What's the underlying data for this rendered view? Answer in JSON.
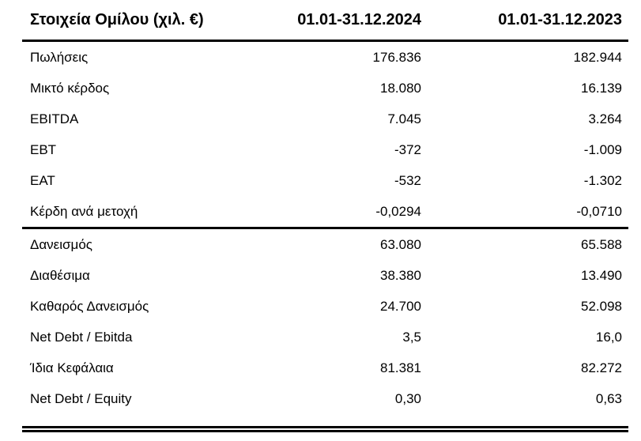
{
  "colors": {
    "background": "#ffffff",
    "text": "#000000",
    "rule": "#000000"
  },
  "table": {
    "header": {
      "title": "Στοιχεία Ομίλου (χιλ. €)",
      "period_2024": "01.01-31.12.2024",
      "period_2023": "01.01-31.12.2023"
    },
    "sections": [
      {
        "rows": [
          {
            "label": "Πωλήσεις",
            "v2024": "176.836",
            "v2023": "182.944"
          },
          {
            "label": "Μικτό κέρδος",
            "v2024": "18.080",
            "v2023": "16.139"
          },
          {
            "label": "EBITDA",
            "v2024": "7.045",
            "v2023": "3.264"
          },
          {
            "label": "EBT",
            "v2024": "-372",
            "v2023": "-1.009"
          },
          {
            "label": "EAT",
            "v2024": "-532",
            "v2023": "-1.302"
          },
          {
            "label": "Κέρδη ανά μετοχή",
            "v2024": "-0,0294",
            "v2023": "-0,0710"
          }
        ]
      },
      {
        "rows": [
          {
            "label": "Δανεισμός",
            "v2024": "63.080",
            "v2023": "65.588"
          },
          {
            "label": "Διαθέσιμα",
            "v2024": "38.380",
            "v2023": "13.490"
          },
          {
            "label": "Καθαρός Δανεισμός",
            "v2024": "24.700",
            "v2023": "52.098"
          },
          {
            "label": "Net Debt / Ebitda",
            "v2024": "3,5",
            "v2023": "16,0"
          },
          {
            "label": "Ίδια Κεφάλαια",
            "v2024": "81.381",
            "v2023": "82.272"
          },
          {
            "label": "Net Debt / Equity",
            "v2024": "0,30",
            "v2023": "0,63"
          }
        ]
      }
    ]
  },
  "chart_data": {
    "type": "table",
    "title": "Στοιχεία Ομίλου (χιλ. €)",
    "columns": [
      "Στοιχεία Ομίλου (χιλ. €)",
      "01.01-31.12.2024",
      "01.01-31.12.2023"
    ],
    "rows": [
      [
        "Πωλήσεις",
        "176.836",
        "182.944"
      ],
      [
        "Μικτό κέρδος",
        "18.080",
        "16.139"
      ],
      [
        "EBITDA",
        "7.045",
        "3.264"
      ],
      [
        "EBT",
        "-372",
        "-1.009"
      ],
      [
        "EAT",
        "-532",
        "-1.302"
      ],
      [
        "Κέρδη ανά μετοχή",
        "-0,0294",
        "-0,0710"
      ],
      [
        "Δανεισμός",
        "63.080",
        "65.588"
      ],
      [
        "Διαθέσιμα",
        "38.380",
        "13.490"
      ],
      [
        "Καθαρός Δανεισμός",
        "24.700",
        "52.098"
      ],
      [
        "Net Debt / Ebitda",
        "3,5",
        "16,0"
      ],
      [
        "Ίδια Κεφάλαια",
        "81.381",
        "82.272"
      ],
      [
        "Net Debt / Equity",
        "0,30",
        "0,63"
      ]
    ]
  }
}
